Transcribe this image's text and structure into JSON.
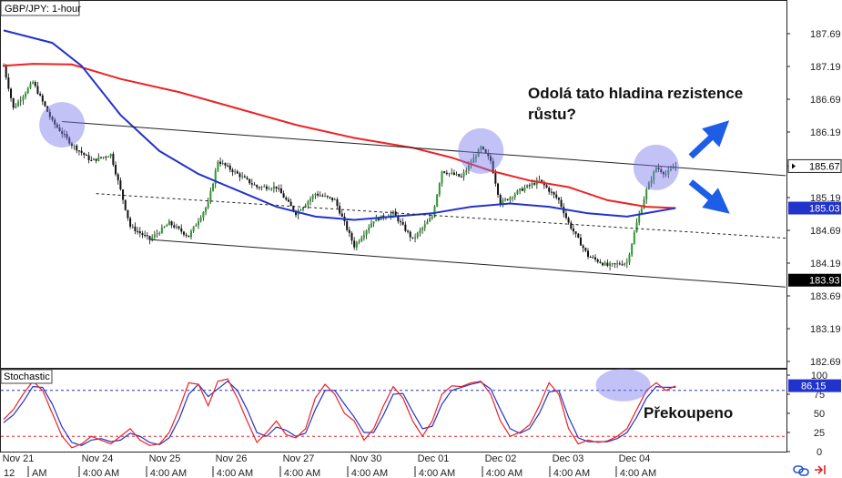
{
  "chart_data": [
    {
      "type": "candlestick",
      "title": "GBP/JPY: 1-hour",
      "ylim": [
        182.55,
        188.05
      ],
      "y_ticks": [
        182.69,
        183.19,
        183.69,
        184.19,
        184.69,
        185.19,
        185.67,
        186.19,
        186.69,
        187.19,
        187.69
      ],
      "grid": "off",
      "x_day_labels": [
        "Nov 21",
        "Nov 24",
        "Nov 25",
        "Nov 26",
        "Nov 27",
        "Nov 30",
        "Dec 01",
        "Dec 02",
        "Dec 03",
        "Dec 04"
      ],
      "x_time_labels": [
        "12",
        "AM",
        "4:00 AM",
        "4:00 AM",
        "4:00 AM",
        "4:00 AM",
        "4:00 AM",
        "4:00 AM",
        "4:00 AM",
        "4:00 AM",
        "4:00 AM"
      ],
      "price_anchors": [
        [
          0,
          187.2
        ],
        [
          1,
          186.55
        ],
        [
          3,
          186.95
        ],
        [
          5,
          186.35
        ],
        [
          7,
          186.0
        ],
        [
          9,
          185.75
        ],
        [
          11,
          185.85
        ],
        [
          13,
          184.75
        ],
        [
          15,
          184.55
        ],
        [
          17,
          184.8
        ],
        [
          19,
          184.6
        ],
        [
          21,
          185.1
        ],
        [
          22,
          185.75
        ],
        [
          24,
          185.55
        ],
        [
          26,
          185.35
        ],
        [
          28,
          185.35
        ],
        [
          30,
          184.95
        ],
        [
          32,
          185.25
        ],
        [
          34,
          185.15
        ],
        [
          36,
          184.45
        ],
        [
          38,
          184.85
        ],
        [
          40,
          184.95
        ],
        [
          42,
          184.55
        ],
        [
          44,
          184.9
        ],
        [
          45,
          185.6
        ],
        [
          47,
          185.5
        ],
        [
          49,
          185.95
        ],
        [
          50,
          185.75
        ],
        [
          51,
          185.1
        ],
        [
          53,
          185.3
        ],
        [
          55,
          185.45
        ],
        [
          57,
          185.15
        ],
        [
          58,
          184.8
        ],
        [
          60,
          184.3
        ],
        [
          62,
          184.15
        ],
        [
          64,
          184.2
        ],
        [
          65,
          184.8
        ],
        [
          66,
          185.3
        ],
        [
          67,
          185.65
        ],
        [
          68,
          185.55
        ],
        [
          69,
          185.67
        ]
      ],
      "ma_blue": [
        [
          0,
          187.74
        ],
        [
          5,
          187.55
        ],
        [
          8,
          187.2
        ],
        [
          12,
          186.45
        ],
        [
          16,
          185.9
        ],
        [
          20,
          185.55
        ],
        [
          24,
          185.3
        ],
        [
          28,
          185.05
        ],
        [
          32,
          184.9
        ],
        [
          36,
          184.85
        ],
        [
          40,
          184.9
        ],
        [
          44,
          184.95
        ],
        [
          48,
          185.05
        ],
        [
          52,
          185.1
        ],
        [
          56,
          185.05
        ],
        [
          60,
          184.95
        ],
        [
          64,
          184.9
        ],
        [
          69,
          185.03
        ]
      ],
      "ma_red": [
        [
          0,
          187.2
        ],
        [
          3,
          187.23
        ],
        [
          7,
          187.22
        ],
        [
          12,
          187.0
        ],
        [
          18,
          186.8
        ],
        [
          24,
          186.55
        ],
        [
          30,
          186.3
        ],
        [
          36,
          186.1
        ],
        [
          42,
          185.95
        ],
        [
          46,
          185.8
        ],
        [
          50,
          185.6
        ],
        [
          54,
          185.45
        ],
        [
          58,
          185.35
        ],
        [
          62,
          185.15
        ],
        [
          66,
          185.05
        ],
        [
          69,
          185.03
        ]
      ],
      "trend_lines": [
        {
          "from": [
            6,
            186.35
          ],
          "to": [
            82.5,
            185.5
          ],
          "style": "solid"
        },
        {
          "from": [
            9.5,
            185.25
          ],
          "to": [
            82.5,
            184.55
          ],
          "style": "dashed"
        },
        {
          "from": [
            15,
            184.55
          ],
          "to": [
            82.5,
            183.8
          ],
          "style": "solid"
        }
      ],
      "highlight_circles": [
        [
          6,
          186.3
        ],
        [
          49,
          185.9
        ],
        [
          67,
          185.65
        ]
      ],
      "current_price": "185.67",
      "price_badges": [
        {
          "value": "185.67",
          "kind": "current"
        },
        {
          "value": "185.03",
          "kind": "ma"
        },
        {
          "value": "183.93",
          "kind": "level"
        }
      ],
      "annotation": {
        "line1": "Odolá tato hladina rezistence",
        "line2": "růstu?"
      },
      "colors": {
        "ma_blue": "#2233cc",
        "ma_red": "#ee2222",
        "candle_up": "#2a9a2a",
        "candle_down": "#111111",
        "highlight": "#7777ee",
        "arrow": "#1e5ee6"
      }
    },
    {
      "type": "line",
      "title": "Stochastic",
      "ylim": [
        0,
        100
      ],
      "y_ticks": [
        "100",
        "75",
        "50",
        "25",
        "0"
      ],
      "levels": [
        80,
        20
      ],
      "current_value": "86.15",
      "annotation": "Překoupeno",
      "series": [
        {
          "values": [
            [
              0,
              42
            ],
            [
              1,
              55
            ],
            [
              2,
              75
            ],
            [
              3,
              92
            ],
            [
              4,
              80
            ],
            [
              5,
              50
            ],
            [
              6,
              20
            ],
            [
              7,
              5
            ],
            [
              8,
              10
            ],
            [
              9,
              20
            ],
            [
              10,
              15
            ],
            [
              11,
              10
            ],
            [
              12,
              20
            ],
            [
              13,
              30
            ],
            [
              14,
              15
            ],
            [
              15,
              8
            ],
            [
              16,
              10
            ],
            [
              17,
              25
            ],
            [
              18,
              55
            ],
            [
              19,
              90
            ],
            [
              20,
              88
            ],
            [
              21,
              60
            ],
            [
              22,
              92
            ],
            [
              23,
              95
            ],
            [
              24,
              70
            ],
            [
              25,
              40
            ],
            [
              26,
              12
            ],
            [
              27,
              25
            ],
            [
              28,
              40
            ],
            [
              29,
              22
            ],
            [
              30,
              18
            ],
            [
              31,
              30
            ],
            [
              32,
              70
            ],
            [
              33,
              88
            ],
            [
              34,
              75
            ],
            [
              35,
              50
            ],
            [
              36,
              40
            ],
            [
              37,
              15
            ],
            [
              38,
              30
            ],
            [
              39,
              60
            ],
            [
              40,
              85
            ],
            [
              41,
              70
            ],
            [
              42,
              40
            ],
            [
              43,
              20
            ],
            [
              44,
              40
            ],
            [
              45,
              75
            ],
            [
              46,
              86
            ],
            [
              47,
              85
            ],
            [
              48,
              90
            ],
            [
              49,
              92
            ],
            [
              50,
              75
            ],
            [
              51,
              40
            ],
            [
              52,
              20
            ],
            [
              53,
              25
            ],
            [
              54,
              35
            ],
            [
              55,
              60
            ],
            [
              56,
              90
            ],
            [
              57,
              75
            ],
            [
              58,
              30
            ],
            [
              59,
              10
            ],
            [
              60,
              15
            ],
            [
              61,
              12
            ],
            [
              62,
              14
            ],
            [
              63,
              20
            ],
            [
              64,
              30
            ],
            [
              65,
              55
            ],
            [
              66,
              80
            ],
            [
              67,
              90
            ],
            [
              68,
              80
            ],
            [
              69,
              86
            ]
          ]
        },
        {
          "values": [
            [
              0,
              38
            ],
            [
              1,
              48
            ],
            [
              2,
              65
            ],
            [
              3,
              85
            ],
            [
              4,
              84
            ],
            [
              5,
              62
            ],
            [
              6,
              32
            ],
            [
              7,
              12
            ],
            [
              8,
              8
            ],
            [
              9,
              15
            ],
            [
              10,
              17
            ],
            [
              11,
              13
            ],
            [
              12,
              15
            ],
            [
              13,
              24
            ],
            [
              14,
              20
            ],
            [
              15,
              12
            ],
            [
              16,
              9
            ],
            [
              17,
              18
            ],
            [
              18,
              42
            ],
            [
              19,
              75
            ],
            [
              20,
              88
            ],
            [
              21,
              72
            ],
            [
              22,
              82
            ],
            [
              23,
              92
            ],
            [
              24,
              80
            ],
            [
              25,
              55
            ],
            [
              26,
              25
            ],
            [
              27,
              20
            ],
            [
              28,
              32
            ],
            [
              29,
              28
            ],
            [
              30,
              20
            ],
            [
              31,
              24
            ],
            [
              32,
              55
            ],
            [
              33,
              80
            ],
            [
              34,
              80
            ],
            [
              35,
              62
            ],
            [
              36,
              45
            ],
            [
              37,
              25
            ],
            [
              38,
              25
            ],
            [
              39,
              48
            ],
            [
              40,
              75
            ],
            [
              41,
              76
            ],
            [
              42,
              52
            ],
            [
              43,
              30
            ],
            [
              44,
              33
            ],
            [
              45,
              62
            ],
            [
              46,
              80
            ],
            [
              47,
              84
            ],
            [
              48,
              88
            ],
            [
              49,
              91
            ],
            [
              50,
              82
            ],
            [
              51,
              55
            ],
            [
              52,
              30
            ],
            [
              53,
              24
            ],
            [
              54,
              30
            ],
            [
              55,
              50
            ],
            [
              56,
              78
            ],
            [
              57,
              80
            ],
            [
              58,
              45
            ],
            [
              59,
              18
            ],
            [
              60,
              13
            ],
            [
              61,
              13
            ],
            [
              62,
              13
            ],
            [
              63,
              17
            ],
            [
              64,
              25
            ],
            [
              65,
              45
            ],
            [
              66,
              70
            ],
            [
              67,
              85
            ],
            [
              68,
              84
            ],
            [
              69,
              84
            ]
          ]
        }
      ],
      "colors": {
        "k": "#ee2222",
        "d": "#2233cc",
        "level_top": "#2233cc",
        "level_bottom": "#ee2222",
        "badge": "#2233cc"
      }
    }
  ]
}
